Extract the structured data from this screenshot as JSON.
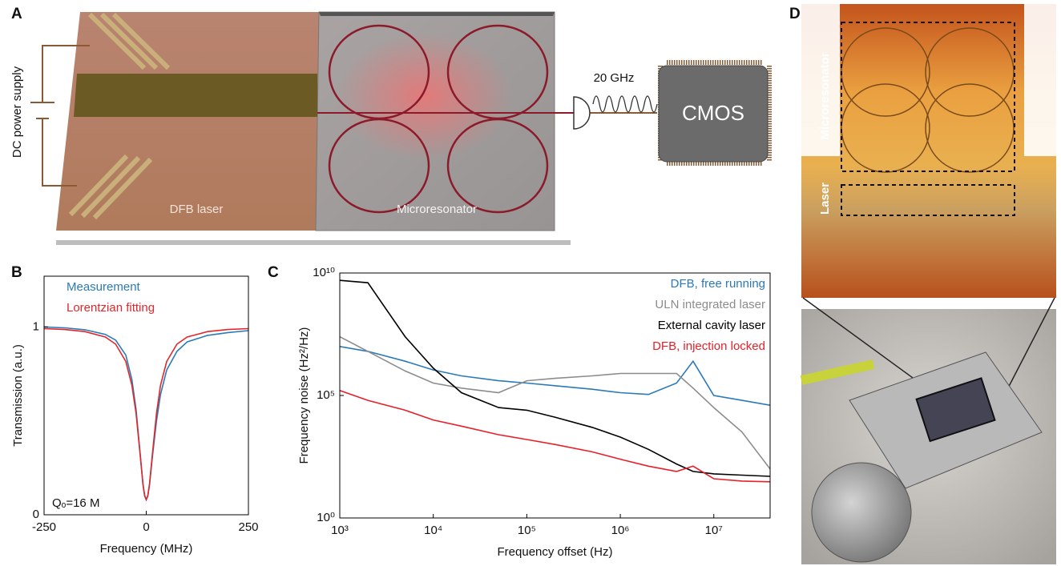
{
  "figure": {
    "panel_labels": [
      "A",
      "B",
      "C",
      "D"
    ],
    "diagram": {
      "power": "DC power supply",
      "laser": "DFB laser",
      "resonator": "Microresonator",
      "frequency": "20 GHz",
      "chip": "CMOS"
    },
    "photo": {
      "resonator": "Microresonator",
      "laser": "Laser"
    }
  },
  "chart_data": [
    {
      "type": "line",
      "xlabel": "Frequency (MHz)",
      "ylabel": "Transmission (a.u.)",
      "annotation": "Qₒ=16 M",
      "xlim": [
        -250,
        250
      ],
      "ylim": [
        0,
        1.27
      ],
      "xticks": [
        -250,
        0,
        250
      ],
      "yticks": [
        0,
        1
      ],
      "legend": "upper left",
      "x": [
        -250,
        -200,
        -150,
        -100,
        -75,
        -50,
        -35,
        -25,
        -15,
        -8,
        -4,
        0,
        4,
        8,
        15,
        25,
        35,
        50,
        75,
        100,
        150,
        200,
        250
      ],
      "series": [
        {
          "name": "Measurement",
          "color": "#2a7ab9",
          "values": [
            1.0,
            0.995,
            0.985,
            0.96,
            0.93,
            0.85,
            0.72,
            0.56,
            0.33,
            0.16,
            0.1,
            0.08,
            0.1,
            0.16,
            0.31,
            0.5,
            0.64,
            0.77,
            0.87,
            0.92,
            0.955,
            0.97,
            0.98
          ]
        },
        {
          "name": "Lorentzian fitting",
          "color": "#e2262b",
          "values": [
            0.991,
            0.986,
            0.975,
            0.946,
            0.908,
            0.816,
            0.689,
            0.54,
            0.324,
            0.165,
            0.103,
            0.08,
            0.103,
            0.165,
            0.324,
            0.54,
            0.689,
            0.816,
            0.908,
            0.946,
            0.975,
            0.986,
            0.991
          ]
        }
      ]
    },
    {
      "type": "line",
      "xlabel": "Frequency offset (Hz)",
      "ylabel": "Frequency noise (Hz²/Hz)",
      "xscale": "log",
      "yscale": "log",
      "xlim": [
        1000,
        40000000
      ],
      "ylim": [
        1,
        10000000000
      ],
      "xticks": [
        {
          "value": 1000,
          "label": "10³"
        },
        {
          "value": 10000,
          "label": "10⁴"
        },
        {
          "value": 100000,
          "label": "10⁵"
        },
        {
          "value": 1000000,
          "label": "10⁶"
        },
        {
          "value": 10000000,
          "label": "10⁷"
        }
      ],
      "yticks": [
        {
          "value": 1,
          "label": "10⁰"
        },
        {
          "value": 100000,
          "label": "10⁵"
        },
        {
          "value": 10000000000,
          "label": "10¹⁰"
        }
      ],
      "legend": "upper right",
      "x": [
        1000,
        2000,
        5000,
        10000,
        20000,
        50000,
        100000,
        200000,
        500000,
        1000000,
        2000000,
        4000000,
        6000000,
        10000000,
        20000000,
        40000000
      ],
      "series": [
        {
          "name": "DFB, free running",
          "color": "#2a7ab9",
          "values": [
            10000000,
            6300000,
            2500000,
            1100000,
            630000,
            400000,
            320000,
            250000,
            180000,
            130000,
            110000,
            320000,
            2500000,
            100000,
            63000,
            40000
          ]
        },
        {
          "name": "ULN integrated laser",
          "color": "#8c8c8c",
          "values": [
            25000000,
            6300000,
            1000000,
            320000,
            200000,
            130000,
            400000,
            500000,
            630000,
            790000,
            790000,
            790000,
            200000,
            32000,
            3200,
            100
          ]
        },
        {
          "name": "External cavity laser",
          "color": "#000000",
          "values": [
            5000000000,
            4000000000,
            25000000,
            1300000,
            130000,
            32000,
            25000,
            13000,
            5000,
            2000,
            630,
            160,
            79,
            63,
            56,
            50
          ]
        },
        {
          "name": "DFB, injection locked",
          "color": "#e8202a",
          "values": [
            160000,
            63000,
            25000,
            10000,
            5600,
            2500,
            1600,
            1000,
            500,
            250,
            130,
            79,
            130,
            40,
            32,
            30
          ]
        }
      ]
    }
  ]
}
